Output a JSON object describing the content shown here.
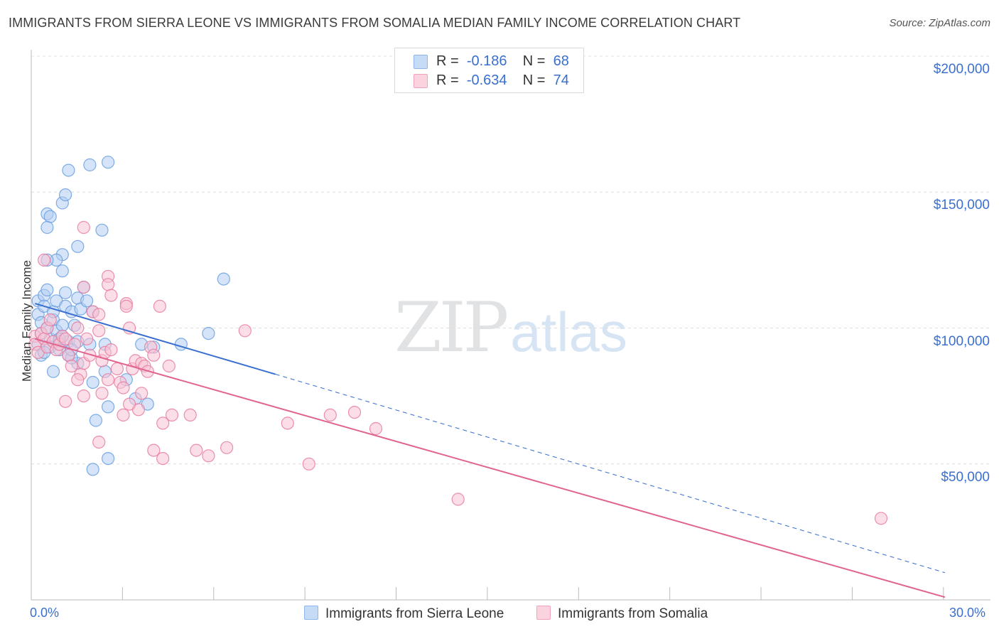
{
  "title": "IMMIGRANTS FROM SIERRA LEONE VS IMMIGRANTS FROM SOMALIA MEDIAN FAMILY INCOME CORRELATION CHART",
  "source": "Source: ZipAtlas.com",
  "watermark": {
    "zip": "ZIP",
    "atlas": "atlas"
  },
  "legend": {
    "rows": [
      {
        "r_label": "R =",
        "r_value": "-0.186",
        "n_label": "N =",
        "n_value": "68",
        "color": "#a8c8f0"
      },
      {
        "r_label": "R =",
        "r_value": "-0.634",
        "n_label": "N =",
        "n_value": "74",
        "color": "#f5b8cb"
      }
    ]
  },
  "chart_data": {
    "type": "scatter",
    "title": "IMMIGRANTS FROM SIERRA LEONE VS IMMIGRANTS FROM SOMALIA MEDIAN FAMILY INCOME CORRELATION CHART",
    "xlabel": "",
    "ylabel": "Median Family Income",
    "xlim": [
      0,
      30
    ],
    "ylim": [
      0,
      210000
    ],
    "x_tick_labels": [
      "0.0%",
      "30.0%"
    ],
    "y_ticks": [
      50000,
      100000,
      150000,
      200000
    ],
    "y_tick_labels": [
      "$50,000",
      "$100,000",
      "$150,000",
      "$200,000"
    ],
    "grid": true,
    "series": [
      {
        "name": "Immigrants from Sierra Leone",
        "color": "#6a9fe0",
        "fill": "#b3cef3",
        "points": [
          [
            0.2,
            105000
          ],
          [
            0.2,
            110000
          ],
          [
            0.3,
            102000
          ],
          [
            0.3,
            98000
          ],
          [
            0.2,
            94000
          ],
          [
            0.3,
            90000
          ],
          [
            0.4,
            112000
          ],
          [
            0.4,
            108000
          ],
          [
            0.5,
            114000
          ],
          [
            0.5,
            100000
          ],
          [
            0.6,
            96000
          ],
          [
            0.6,
            93000
          ],
          [
            0.4,
            91000
          ],
          [
            0.7,
            103000
          ],
          [
            0.7,
            106000
          ],
          [
            0.8,
            110000
          ],
          [
            0.8,
            99000
          ],
          [
            0.9,
            95000
          ],
          [
            0.9,
            92000
          ],
          [
            1.0,
            101000
          ],
          [
            1.0,
            97000
          ],
          [
            1.1,
            108000
          ],
          [
            1.1,
            113000
          ],
          [
            1.2,
            95000
          ],
          [
            1.2,
            90000
          ],
          [
            1.3,
            106000
          ],
          [
            1.4,
            101000
          ],
          [
            1.5,
            111000
          ],
          [
            1.5,
            95000
          ],
          [
            1.6,
            107000
          ],
          [
            1.7,
            115000
          ],
          [
            1.8,
            110000
          ],
          [
            2.0,
            106000
          ],
          [
            1.9,
            94000
          ],
          [
            0.5,
            142000
          ],
          [
            0.6,
            141000
          ],
          [
            0.5,
            137000
          ],
          [
            1.0,
            146000
          ],
          [
            1.1,
            149000
          ],
          [
            1.2,
            158000
          ],
          [
            1.9,
            160000
          ],
          [
            2.5,
            161000
          ],
          [
            2.3,
            136000
          ],
          [
            1.5,
            130000
          ],
          [
            1.0,
            127000
          ],
          [
            1.0,
            121000
          ],
          [
            0.8,
            125000
          ],
          [
            0.5,
            125000
          ],
          [
            0.7,
            84000
          ],
          [
            1.5,
            87000
          ],
          [
            1.3,
            89000
          ],
          [
            2.0,
            80000
          ],
          [
            2.4,
            84000
          ],
          [
            3.1,
            81000
          ],
          [
            2.4,
            94000
          ],
          [
            3.6,
            94000
          ],
          [
            4.0,
            93000
          ],
          [
            4.9,
            94000
          ],
          [
            5.8,
            98000
          ],
          [
            6.3,
            118000
          ],
          [
            2.5,
            71000
          ],
          [
            2.1,
            66000
          ],
          [
            3.4,
            74000
          ],
          [
            3.8,
            72000
          ],
          [
            2.5,
            52000
          ],
          [
            2.0,
            48000
          ],
          [
            1.3,
            92000
          ],
          [
            0.9,
            96000
          ]
        ]
      },
      {
        "name": "Immigrants from Somalia",
        "color": "#e87ca0",
        "fill": "#f7c3d3",
        "points": [
          [
            0.1,
            97000
          ],
          [
            0.1,
            94000
          ],
          [
            0.2,
            91000
          ],
          [
            0.3,
            98000
          ],
          [
            0.4,
            96000
          ],
          [
            0.5,
            100000
          ],
          [
            0.5,
            93000
          ],
          [
            0.6,
            103000
          ],
          [
            0.7,
            95000
          ],
          [
            0.8,
            92000
          ],
          [
            0.9,
            94000
          ],
          [
            1.0,
            97000
          ],
          [
            1.1,
            96000
          ],
          [
            1.2,
            90000
          ],
          [
            1.3,
            86000
          ],
          [
            1.4,
            94000
          ],
          [
            1.5,
            100000
          ],
          [
            1.6,
            83000
          ],
          [
            1.7,
            87000
          ],
          [
            1.8,
            96000
          ],
          [
            1.9,
            90000
          ],
          [
            2.0,
            106000
          ],
          [
            2.2,
            99000
          ],
          [
            2.3,
            88000
          ],
          [
            2.4,
            91000
          ],
          [
            2.5,
            81000
          ],
          [
            2.6,
            92000
          ],
          [
            2.8,
            85000
          ],
          [
            2.9,
            80000
          ],
          [
            3.0,
            78000
          ],
          [
            3.1,
            109000
          ],
          [
            3.2,
            100000
          ],
          [
            3.3,
            85000
          ],
          [
            3.4,
            88000
          ],
          [
            3.5,
            70000
          ],
          [
            3.6,
            87000
          ],
          [
            3.7,
            86000
          ],
          [
            3.8,
            84000
          ],
          [
            3.9,
            93000
          ],
          [
            4.0,
            90000
          ],
          [
            4.2,
            108000
          ],
          [
            4.3,
            65000
          ],
          [
            4.5,
            86000
          ],
          [
            4.6,
            68000
          ],
          [
            0.4,
            125000
          ],
          [
            1.7,
            137000
          ],
          [
            2.5,
            119000
          ],
          [
            2.5,
            116000
          ],
          [
            2.6,
            112000
          ],
          [
            1.7,
            115000
          ],
          [
            2.2,
            105000
          ],
          [
            3.1,
            108000
          ],
          [
            7.0,
            99000
          ],
          [
            8.4,
            65000
          ],
          [
            9.8,
            68000
          ],
          [
            10.6,
            69000
          ],
          [
            11.3,
            63000
          ],
          [
            9.1,
            50000
          ],
          [
            4.3,
            52000
          ],
          [
            4.0,
            55000
          ],
          [
            5.4,
            55000
          ],
          [
            5.8,
            53000
          ],
          [
            6.4,
            56000
          ],
          [
            5.2,
            68000
          ],
          [
            3.2,
            72000
          ],
          [
            3.6,
            76000
          ],
          [
            2.3,
            76000
          ],
          [
            1.7,
            75000
          ],
          [
            1.1,
            73000
          ],
          [
            1.5,
            81000
          ],
          [
            2.2,
            58000
          ],
          [
            14.0,
            37000
          ],
          [
            27.9,
            30000
          ],
          [
            3.0,
            68000
          ]
        ]
      }
    ],
    "trend_lines": [
      {
        "series": "Immigrants from Sierra Leone",
        "x_start": 0.1,
        "y_start": 109000,
        "x_solid_end": 8.0,
        "y_solid_end": 83000,
        "x_end": 30.0,
        "y_end": 10000,
        "color": "#3a6fcf"
      },
      {
        "series": "Immigrants from Somalia",
        "x_start": 0.1,
        "y_start": 96000,
        "x_end": 30.0,
        "y_end": 1000,
        "color": "#e0648f"
      }
    ],
    "legend_position": "top-center"
  },
  "bottom_legend": [
    {
      "label": "Immigrants from Sierra Leone",
      "color": "#a8c8f0"
    },
    {
      "label": "Immigrants from Somalia",
      "color": "#f5b8cb"
    }
  ]
}
